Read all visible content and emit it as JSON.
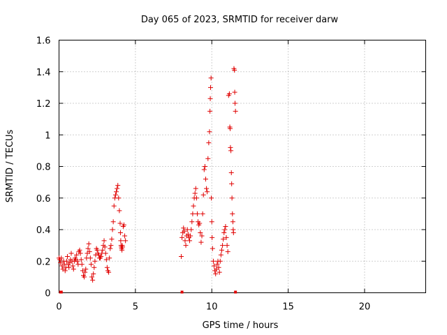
{
  "chart_data": {
    "type": "scatter",
    "title": "Day 065 of 2023, SRMTID for receiver darw",
    "xlabel": "GPS time / hours",
    "ylabel": "SRMTID / TECUs",
    "xlim": [
      0,
      24
    ],
    "ylim": [
      0,
      1.6
    ],
    "xticks": [
      0,
      5,
      10,
      15,
      20
    ],
    "xtick_labels": [
      "0",
      "5",
      "10",
      "15",
      "20"
    ],
    "yticks": [
      0,
      0.2,
      0.4,
      0.6,
      0.8,
      1.0,
      1.2,
      1.4,
      1.6
    ],
    "ytick_labels": [
      "0",
      "0.2",
      "0.4",
      "0.6",
      "0.8",
      "1",
      "1.2",
      "1.4",
      "1.6"
    ],
    "grid": true,
    "marker": "+",
    "color": "#e00000",
    "series": [
      {
        "name": "SRMTID",
        "x": [
          0.0,
          0.05,
          0.1,
          0.15,
          0.2,
          0.25,
          0.3,
          0.35,
          0.4,
          0.45,
          0.5,
          0.55,
          0.6,
          0.65,
          0.7,
          0.75,
          0.8,
          0.85,
          0.9,
          0.95,
          1.0,
          1.05,
          1.1,
          1.15,
          1.2,
          1.25,
          1.3,
          1.35,
          1.4,
          1.45,
          1.5,
          1.55,
          1.6,
          1.65,
          1.7,
          1.75,
          1.8,
          1.85,
          1.9,
          1.95,
          2.0,
          2.05,
          2.1,
          2.15,
          2.2,
          2.25,
          2.3,
          2.35,
          2.4,
          2.45,
          2.5,
          2.55,
          2.6,
          2.65,
          2.7,
          2.75,
          2.8,
          2.85,
          2.9,
          2.95,
          3.0,
          3.05,
          3.1,
          3.15,
          3.2,
          3.25,
          3.3,
          3.35,
          3.4,
          3.45,
          3.5,
          3.55,
          3.6,
          3.65,
          3.7,
          3.75,
          3.8,
          3.85,
          3.9,
          3.95,
          4.0,
          4.02,
          4.04,
          4.06,
          4.08,
          4.1,
          4.12,
          4.14,
          4.16,
          4.2,
          4.25,
          4.3,
          4.35,
          8.0,
          8.05,
          8.1,
          8.15,
          8.2,
          8.25,
          8.3,
          8.35,
          8.4,
          8.45,
          8.5,
          8.55,
          8.6,
          8.65,
          8.7,
          8.75,
          8.8,
          8.85,
          8.9,
          8.95,
          9.0,
          9.05,
          9.1,
          9.15,
          9.2,
          9.25,
          9.3,
          9.35,
          9.4,
          9.45,
          9.5,
          9.55,
          9.6,
          9.65,
          9.7,
          9.75,
          9.8,
          9.85,
          9.88,
          9.9,
          9.92,
          9.95,
          9.97,
          10.0,
          10.02,
          10.05,
          10.1,
          10.15,
          10.2,
          10.25,
          10.3,
          10.35,
          10.4,
          10.45,
          10.5,
          10.55,
          10.6,
          10.65,
          10.7,
          10.75,
          10.8,
          10.85,
          10.9,
          10.95,
          11.0,
          11.05,
          11.1,
          11.15,
          11.18,
          11.2,
          11.22,
          11.25,
          11.28,
          11.3,
          11.32,
          11.35,
          11.38,
          11.4,
          11.42,
          11.45,
          11.48,
          11.5,
          11.52,
          11.55
        ],
        "y": [
          0.22,
          0.21,
          0.19,
          0.22,
          0.17,
          0.15,
          0.2,
          0.18,
          0.14,
          0.16,
          0.2,
          0.23,
          0.18,
          0.16,
          0.19,
          0.21,
          0.25,
          0.2,
          0.17,
          0.15,
          0.2,
          0.22,
          0.21,
          0.24,
          0.2,
          0.18,
          0.26,
          0.27,
          0.25,
          0.21,
          0.18,
          0.14,
          0.11,
          0.1,
          0.13,
          0.15,
          0.22,
          0.25,
          0.28,
          0.31,
          0.26,
          0.22,
          0.18,
          0.1,
          0.08,
          0.12,
          0.16,
          0.2,
          0.24,
          0.28,
          0.27,
          0.25,
          0.24,
          0.22,
          0.22,
          0.23,
          0.25,
          0.27,
          0.3,
          0.33,
          0.29,
          0.25,
          0.21,
          0.16,
          0.14,
          0.13,
          0.22,
          0.28,
          0.3,
          0.34,
          0.4,
          0.45,
          0.55,
          0.6,
          0.62,
          0.64,
          0.66,
          0.68,
          0.6,
          0.52,
          0.44,
          0.38,
          0.33,
          0.3,
          0.29,
          0.28,
          0.27,
          0.3,
          0.29,
          0.42,
          0.43,
          0.36,
          0.33,
          0.23,
          0.35,
          0.38,
          0.41,
          0.39,
          0.33,
          0.3,
          0.36,
          0.4,
          0.37,
          0.35,
          0.33,
          0.36,
          0.4,
          0.45,
          0.5,
          0.55,
          0.6,
          0.63,
          0.66,
          0.6,
          0.5,
          0.45,
          0.43,
          0.44,
          0.38,
          0.32,
          0.36,
          0.5,
          0.62,
          0.78,
          0.8,
          0.72,
          0.66,
          0.64,
          0.85,
          0.95,
          1.02,
          1.15,
          1.23,
          1.3,
          1.36,
          0.6,
          0.45,
          0.35,
          0.28,
          0.2,
          0.17,
          0.14,
          0.12,
          0.15,
          0.18,
          0.2,
          0.16,
          0.13,
          0.2,
          0.24,
          0.27,
          0.3,
          0.34,
          0.38,
          0.4,
          0.42,
          0.35,
          0.3,
          0.26,
          1.25,
          1.26,
          1.05,
          1.04,
          0.92,
          0.9,
          0.76,
          0.69,
          0.6,
          0.5,
          0.45,
          0.4,
          0.38,
          1.42,
          1.41,
          1.27,
          1.2,
          1.15
        ]
      }
    ],
    "bottom_markers_x": [
      0.1,
      0.15,
      8.05,
      11.55
    ]
  }
}
